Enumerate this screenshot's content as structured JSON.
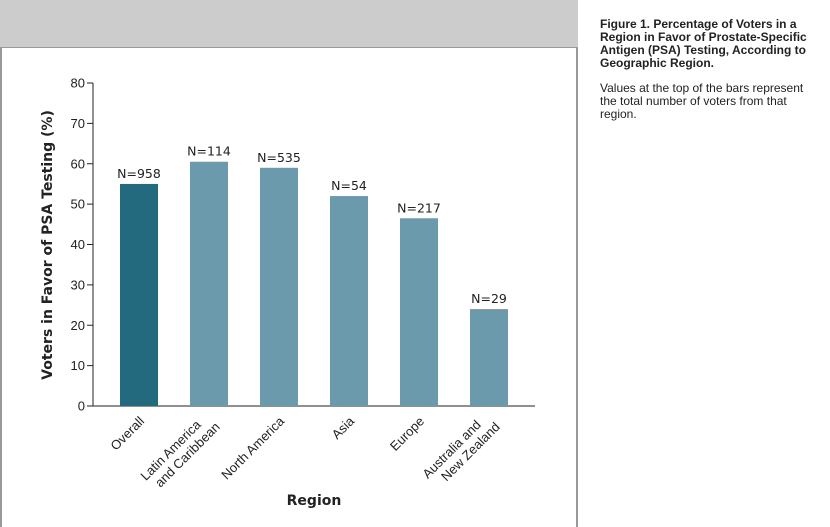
{
  "caption": {
    "title": "Figure 1. Percentage of Voters in a Region in Favor of Prostate-Specific Antigen (PSA) Testing, According to Geographic Region.",
    "body": "Values at the top of the bars represent the total number of voters from that region."
  },
  "chart_data": {
    "type": "bar",
    "xlabel": "Region",
    "ylabel": "Voters in Favor of PSA Testing (%)",
    "ylim": [
      0,
      80
    ],
    "yticks": [
      0,
      10,
      20,
      30,
      40,
      50,
      60,
      70,
      80
    ],
    "grid": false,
    "categories": [
      [
        "Overall"
      ],
      [
        "Latin America",
        "and Caribbean"
      ],
      [
        "North America"
      ],
      [
        "Asia"
      ],
      [
        "Europe"
      ],
      [
        "Australia and",
        "New Zealand"
      ]
    ],
    "values": [
      55,
      60.5,
      59,
      52,
      46.5,
      24
    ],
    "data_labels": [
      "N=958",
      "N=114",
      "N=535",
      "N=54",
      "N=217",
      "N=29"
    ],
    "colors": [
      "#236a7e",
      "#6a9aac",
      "#6a9aac",
      "#6a9aac",
      "#6a9aac",
      "#6a9aac"
    ]
  }
}
